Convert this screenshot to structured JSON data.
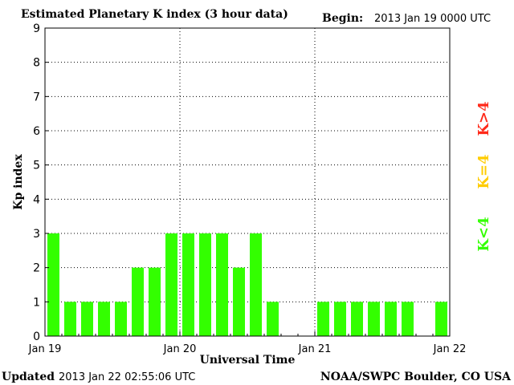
{
  "header": {
    "title": "Estimated Planetary K index (3 hour data)",
    "begin_label": "Begin:",
    "begin_value": "2013 Jan 19 0000 UTC"
  },
  "footer": {
    "updated_label": "Updated",
    "updated_value": "2013 Jan 22 02:55:06 UTC",
    "source": "NOAA/SWPC Boulder, CO USA"
  },
  "legend": {
    "high": {
      "label": "K>4",
      "color": "#ff2a1a"
    },
    "mid": {
      "label": "K=4",
      "color": "#ffcc00"
    },
    "low": {
      "label": "K<4",
      "color": "#33ff00"
    }
  },
  "chart_data": {
    "type": "bar",
    "title": "Estimated Planetary K index (3 hour data)",
    "xlabel": "Universal Time",
    "ylabel": "Kp index",
    "ylim": [
      0,
      9
    ],
    "y_ticks": [
      "0",
      "1",
      "2",
      "3",
      "4",
      "5",
      "6",
      "7",
      "8",
      "9"
    ],
    "x_tick_labels": [
      "Jan 19",
      "Jan 20",
      "Jan 21",
      "Jan 22"
    ],
    "bar_interval_hours": 3,
    "days": 3,
    "grid": "dotted",
    "bar_color": "#33ff00",
    "values": [
      3,
      1,
      1,
      1,
      1,
      2,
      2,
      3,
      3,
      3,
      3,
      2,
      3,
      1,
      0,
      0,
      1,
      1,
      1,
      1,
      1,
      1,
      0,
      1
    ]
  }
}
